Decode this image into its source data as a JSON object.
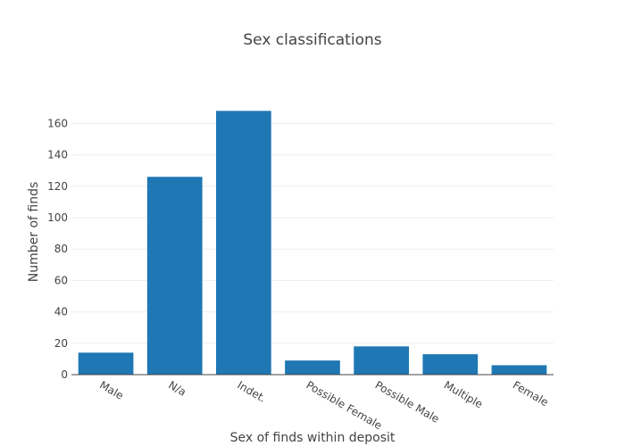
{
  "chart_data": {
    "type": "bar",
    "title": "Sex classifications",
    "xlabel": "Sex of finds within deposit",
    "ylabel": "Number of finds",
    "categories": [
      "Male",
      "N/a",
      "Indet.",
      "Possible Female",
      "Possible Male",
      "Multiple",
      "Female"
    ],
    "values": [
      14,
      126,
      168,
      9,
      18,
      13,
      6
    ],
    "ylim": [
      0,
      175
    ],
    "yticks": [
      0,
      20,
      40,
      60,
      80,
      100,
      120,
      140,
      160
    ],
    "grid": true,
    "bar_color": "#1f77b4"
  }
}
